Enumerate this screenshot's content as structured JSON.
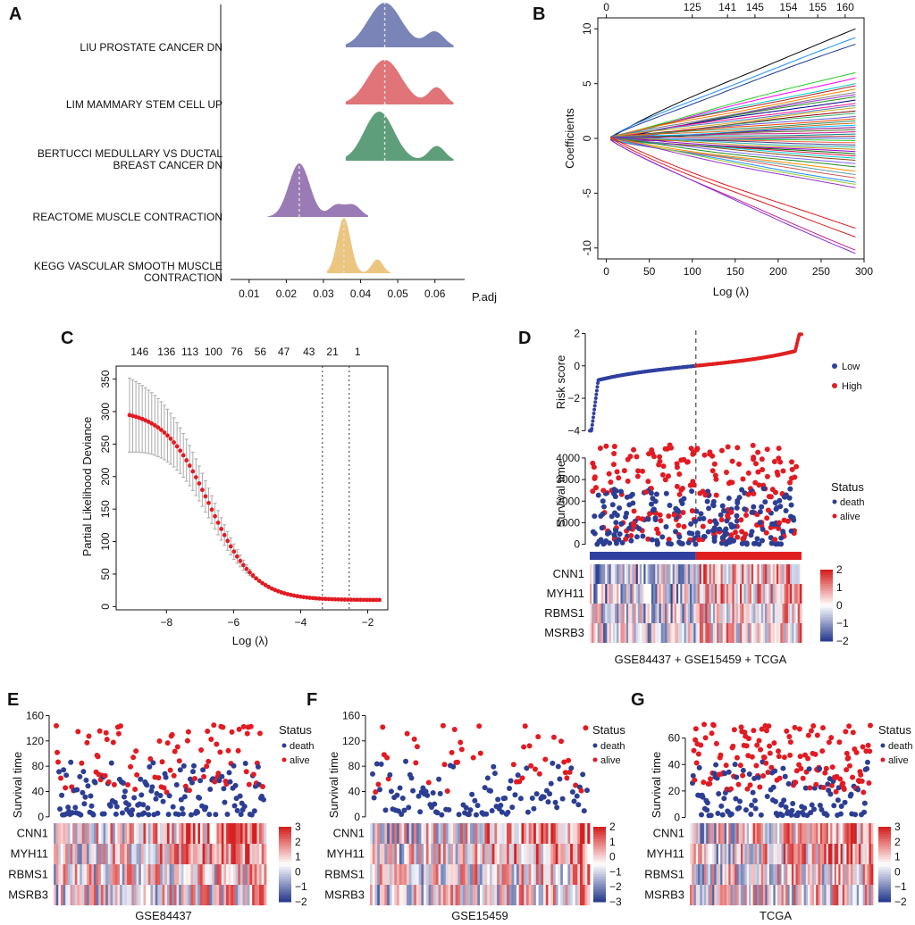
{
  "colors": {
    "low": "#3040a0",
    "high": "#e02020",
    "death": "#2c3e94",
    "alive": "#e21b22",
    "heat_low": "#2b3f8f",
    "heat_mid": "#ffffff",
    "heat_high": "#d52121",
    "ridge": [
      "#7b84b7",
      "#e07478",
      "#5e9e7a",
      "#9b7bb5",
      "#ecc57f"
    ]
  },
  "chart_data": [
    {
      "panel": "A",
      "type": "area",
      "xlabel": "P.adj",
      "xlim": [
        0.005,
        0.068
      ],
      "xticks": [
        "0.01",
        "0.02",
        "0.03",
        "0.04",
        "0.05",
        "0.06"
      ],
      "xtick_values": [
        0.01,
        0.02,
        0.03,
        0.04,
        0.05,
        0.06
      ],
      "series": [
        {
          "name": "LIU PROSTATE CANCER DN",
          "lines": [
            "LIU PROSTATE CANCER DN"
          ],
          "median": 0.0465,
          "peaks": [
            [
              0.0465,
              0.0045,
              1.0
            ],
            [
              0.06,
              0.0025,
              0.35
            ]
          ],
          "range": [
            0.036,
            0.065
          ]
        },
        {
          "name": "LIM MAMMARY STEM CELL UP",
          "lines": [
            "LIM MAMMARY STEM CELL UP"
          ],
          "median": 0.0465,
          "peaks": [
            [
              0.0465,
              0.0045,
              1.0
            ],
            [
              0.0605,
              0.0022,
              0.38
            ]
          ],
          "range": [
            0.036,
            0.065
          ]
        },
        {
          "name": "BERTUCCI MEDULLARY VS DUCTAL BREAST CANCER DN",
          "lines": [
            "BERTUCCI MEDULLARY VS DUCTAL",
            "BREAST CANCER DN"
          ],
          "median": 0.0465,
          "peaks": [
            [
              0.045,
              0.004,
              1.0
            ],
            [
              0.0605,
              0.0022,
              0.3
            ]
          ],
          "range": [
            0.036,
            0.065
          ]
        },
        {
          "name": "REACTOME MUSCLE CONTRACTION",
          "lines": [
            "REACTOME MUSCLE CONTRACTION"
          ],
          "median": 0.0235,
          "peaks": [
            [
              0.0235,
              0.0028,
              1.0
            ],
            [
              0.0335,
              0.002,
              0.22
            ],
            [
              0.038,
              0.002,
              0.22
            ]
          ],
          "range": [
            0.015,
            0.042
          ]
        },
        {
          "name": "KEGG VASCULAR SMOOTH MUSCLE CONTRACTION",
          "lines": [
            "KEGG VASCULAR SMOOTH MUSCLE",
            "CONTRACTION"
          ],
          "median": 0.0355,
          "peaks": [
            [
              0.0355,
              0.0018,
              1.0
            ],
            [
              0.0445,
              0.0015,
              0.25
            ]
          ],
          "range": [
            0.031,
            0.048
          ]
        }
      ]
    },
    {
      "panel": "B",
      "type": "line",
      "xlabel": "Log (λ)",
      "ylabel": "Coefficients",
      "xlim": [
        -10,
        300
      ],
      "ylim": [
        -11,
        11
      ],
      "xticks": [
        0,
        50,
        100,
        150,
        200,
        250,
        300
      ],
      "yticks": [
        -10,
        -5,
        0,
        5,
        10
      ],
      "top_x": [
        0,
        100,
        141,
        173,
        212,
        246,
        278
      ],
      "top_labels": [
        "0",
        "125",
        "141",
        "145",
        "154",
        "155",
        "160"
      ],
      "path_ends": [
        10,
        9.2,
        8.6,
        6,
        5.5,
        5,
        4.8,
        4.5,
        4.2,
        4,
        3.8,
        3.5,
        3.2,
        3,
        2.8,
        2.5,
        2.3,
        2,
        1.8,
        1.6,
        1.4,
        1.2,
        1,
        0.8,
        0.6,
        0.4,
        0.2,
        0,
        -0.2,
        -0.4,
        -0.6,
        -0.8,
        -1,
        -1.2,
        -1.4,
        -1.6,
        -1.8,
        -2,
        -2.3,
        -2.6,
        -3,
        -3.3,
        -3.6,
        -4,
        -4.2,
        -4.5,
        -8.2,
        -9,
        -10.2,
        -10.5
      ],
      "path_colors": [
        "#000000",
        "#1e90ff",
        "#1f3d99",
        "#22cc22",
        "#ff00ff",
        "#00cccc",
        "#b22222",
        "#ff7f00",
        "#808080",
        "#9932cc",
        "#228b22",
        "#000080",
        "#ff1493",
        "#4682b4",
        "#daa520",
        "#8b0000",
        "#3cb371",
        "#6a5acd",
        "#ff4500",
        "#2e8b57",
        "#d2691e",
        "#00bfff",
        "#800080",
        "#556b2f",
        "#c71585",
        "#008080",
        "#a52a2a",
        "#4169e1",
        "#32cd32",
        "#ff6347",
        "#483d8b",
        "#20b2aa",
        "#b8860b",
        "#9400d3",
        "#006400",
        "#dc143c",
        "#00ced1",
        "#8b4513",
        "#7b68ee",
        "#228b22",
        "#ff8c00",
        "#5f9ea0",
        "#cd5c5c",
        "#1e90ff",
        "#9acd32",
        "#9932cc",
        "#e31a1c",
        "#dd2222",
        "#c51b8a",
        "#8a2be2"
      ]
    },
    {
      "panel": "C",
      "type": "scatter",
      "xlabel": "Log (λ)",
      "ylabel": "Partial Likelihood Deviance",
      "xlim": [
        -9.5,
        -1.4
      ],
      "ylim": [
        -5,
        370
      ],
      "xticks": [
        -8,
        -6,
        -4,
        -2
      ],
      "yticks": [
        0,
        50,
        100,
        150,
        200,
        250,
        300,
        350
      ],
      "top_x": [
        -8.8,
        -8.0,
        -7.3,
        -6.6,
        -5.9,
        -5.2,
        -4.5,
        -3.75,
        -3.05,
        -2.3
      ],
      "top_labels": [
        "146",
        "136",
        "113",
        "100",
        "76",
        "56",
        "47",
        "43",
        "21",
        "1"
      ],
      "vlines": [
        -3.35,
        -2.55
      ],
      "lambda_min": -9.1,
      "lambda_max": -1.65,
      "n_points": 80,
      "dev_start": 303,
      "dev_end": 10,
      "err_start": 57
    },
    {
      "panel": "D",
      "type": "scatter",
      "risk_ylabel": "Risk score",
      "risk_yticks": [
        -4,
        -2,
        0,
        2
      ],
      "risk_ylim": [
        -4.2,
        2.3
      ],
      "risk_groups": [
        "Low",
        "High"
      ],
      "surv_ylabel": "Survival time",
      "surv_yticks": [
        0,
        1000,
        2000,
        3000,
        4000
      ],
      "surv_ylim": [
        -100,
        4700
      ],
      "status_title": "Status",
      "status_labels": [
        "death",
        "alive"
      ],
      "n_samples": 420,
      "genes": [
        "CNN1",
        "MYH11",
        "RBMS1",
        "MSRB3"
      ],
      "colorbar_ticks": [
        "2",
        "1",
        "0",
        "−1",
        "−2"
      ],
      "xlabel": "GSE84437 + GSE15459 + TCGA"
    },
    {
      "panel": "E",
      "type": "heatmap",
      "ylabel": "Survival time",
      "yticks": [
        0,
        40,
        80,
        120,
        160
      ],
      "ylim": [
        -3,
        162
      ],
      "status_title": "Status",
      "status_labels": [
        "death",
        "alive"
      ],
      "genes": [
        "CNN1",
        "MYH11",
        "RBMS1",
        "MSRB3"
      ],
      "colorbar_ticks": [
        "3",
        "2",
        "1",
        "0",
        "−1",
        "−2"
      ],
      "xlabel": "GSE84437",
      "n": 230,
      "alive_frac": 0.4
    },
    {
      "panel": "F",
      "type": "heatmap",
      "ylabel": "Survival time",
      "yticks": [
        0,
        40,
        80,
        120,
        160
      ],
      "ylim": [
        -3,
        162
      ],
      "status_title": "Status",
      "status_labels": [
        "death",
        "alive"
      ],
      "genes": [
        "CNN1",
        "MYH11",
        "RBMS1",
        "MSRB3"
      ],
      "colorbar_ticks": [
        "2",
        "1",
        "0",
        "−1",
        "−2",
        "−3"
      ],
      "xlabel": "GSE15459",
      "n": 150,
      "alive_frac": 0.35
    },
    {
      "panel": "G",
      "type": "heatmap",
      "ylabel": "Survival time",
      "yticks": [
        0,
        20,
        40,
        60
      ],
      "ylim": [
        -1,
        78
      ],
      "status_title": "Status",
      "status_labels": [
        "death",
        "alive"
      ],
      "genes": [
        "CNN1",
        "MYH11",
        "RBMS1",
        "MSRB3"
      ],
      "colorbar_ticks": [
        "3",
        "2",
        "1",
        "0",
        "−1",
        "−2"
      ],
      "xlabel": "TCGA",
      "n": 260,
      "alive_frac": 0.55
    }
  ]
}
